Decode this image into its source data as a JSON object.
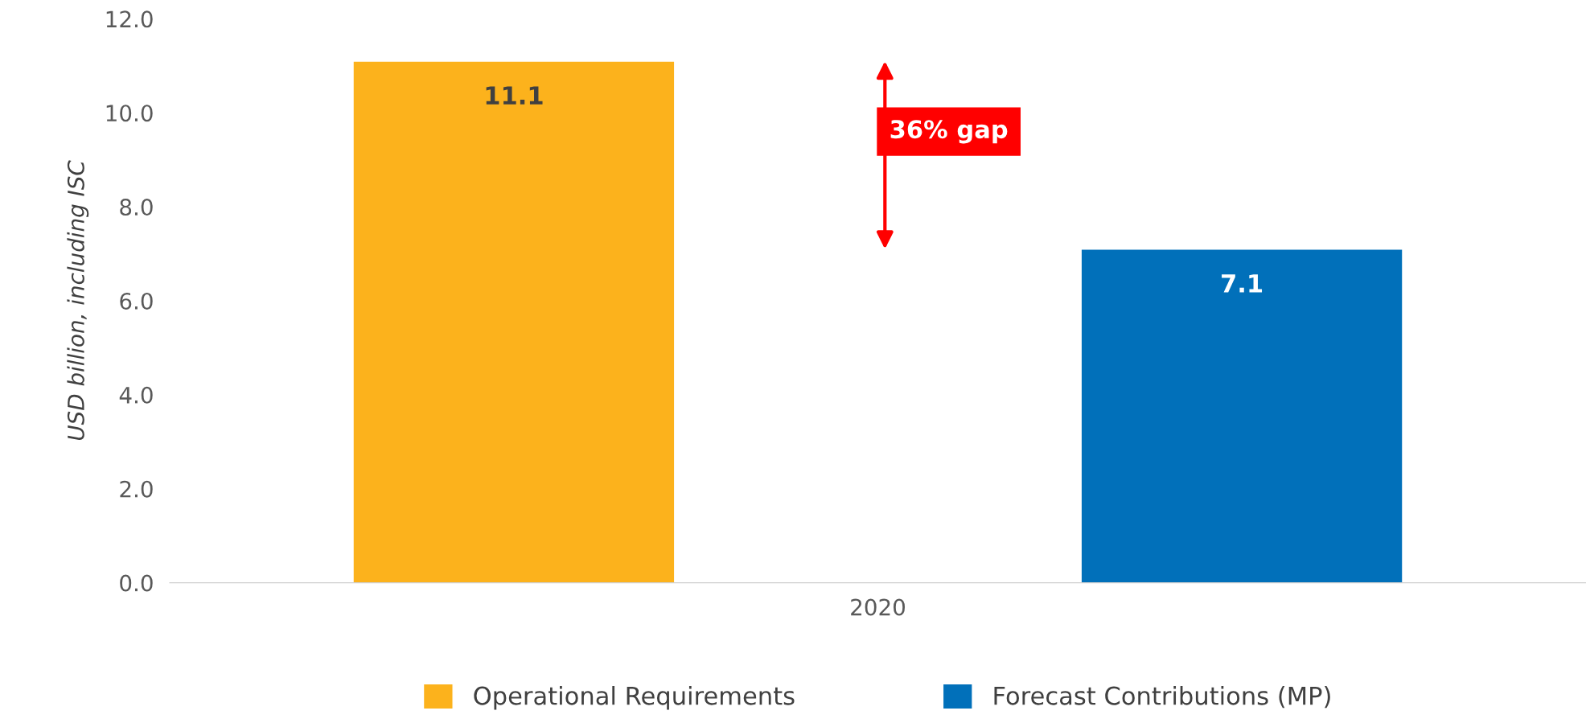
{
  "chart_data": {
    "type": "bar",
    "categories": [
      "2020"
    ],
    "series": [
      {
        "name": "Operational Requirements",
        "color": "#fcb21c",
        "values": [
          11.1
        ]
      },
      {
        "name": "Forecast Contributions (MP)",
        "color": "#0170ba",
        "values": [
          7.1
        ]
      }
    ],
    "ylabel": "USD billion, including ISC",
    "ylim": [
      0,
      12
    ],
    "yticks": [
      {
        "value": 0,
        "label": "0.0"
      },
      {
        "value": 2,
        "label": "2.0"
      },
      {
        "value": 4,
        "label": "4.0"
      },
      {
        "value": 6,
        "label": "6.0"
      },
      {
        "value": 8,
        "label": "8.0"
      },
      {
        "value": 10,
        "label": "10.0"
      },
      {
        "value": 12,
        "label": "12.0"
      }
    ],
    "data_labels": true,
    "annotations": [
      "36% gap"
    ],
    "grid": false,
    "legend": "bottom"
  }
}
